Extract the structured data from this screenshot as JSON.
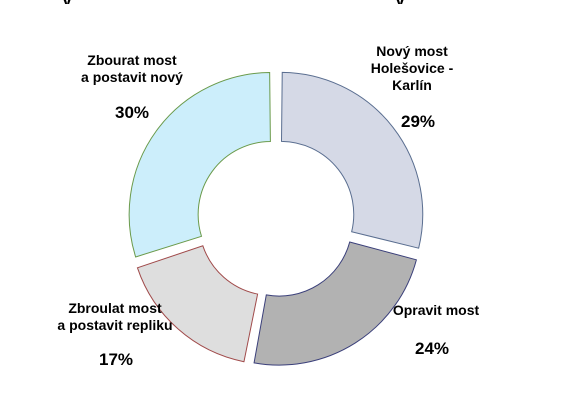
{
  "chart_data": {
    "type": "pie",
    "donut": true,
    "categories": [
      "Nový most Holešovice - Karlín",
      "Opravit most",
      "Zbroulat most a postavit repliku",
      "Zbourat most a postavit nový"
    ],
    "values": [
      29,
      24,
      17,
      30
    ],
    "value_labels": [
      "29%",
      "24%",
      "17%",
      "30%"
    ],
    "colors": [
      "#D5D9E6",
      "#B2B2B2",
      "#DEDEDE",
      "#CCEEFB"
    ],
    "edge_colors": [
      "#5A6E90",
      "#3A3F7A",
      "#A04A4A",
      "#6A9A4A"
    ],
    "legend": "none"
  },
  "labels": {
    "nov": "Nový most\nHolešovice -\nKarlín",
    "opravit": "Opravit most",
    "replika": "Zbroulat most\na postavit repliku",
    "zbourat": "Zbourat most\na postavit nový"
  }
}
